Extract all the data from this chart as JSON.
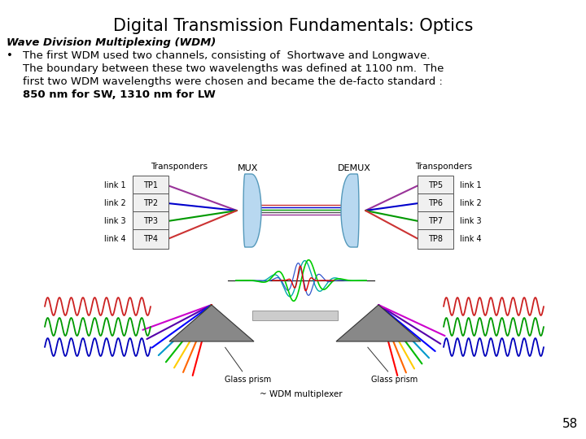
{
  "title": "Digital Transmission Fundamentals: Optics",
  "subtitle": "Wave Division Multiplexing (WDM)",
  "bullet_line1": "The first WDM used two channels, consisting of  Shortwave and Longwave.",
  "bullet_line2": "The boundary between these two wavelengths was defined at 1100 nm.  The",
  "bullet_line3": "first two WDM wavelengths were chosen and became the de-facto standard :",
  "bullet_line4": "850 nm for SW, 1310 nm for LW",
  "page_number": "58",
  "background": "#ffffff",
  "title_fontsize": 15,
  "body_fontsize": 9.5,
  "subtitle_fontsize": 9.5,
  "tp_left": [
    {
      "label": "TP1",
      "link": "link 1",
      "color": "#993399"
    },
    {
      "label": "TP2",
      "link": "link 2",
      "color": "#0000cc"
    },
    {
      "label": "TP3",
      "link": "link 3",
      "color": "#009900"
    },
    {
      "label": "TP4",
      "link": "link 4",
      "color": "#cc3333"
    }
  ],
  "tp_right": [
    {
      "label": "TP5",
      "link": "link 1",
      "color": "#993399"
    },
    {
      "label": "TP6",
      "link": "link 2",
      "color": "#0000cc"
    },
    {
      "label": "TP7",
      "link": "link 3",
      "color": "#009900"
    },
    {
      "label": "TP8",
      "link": "link 4",
      "color": "#cc3333"
    }
  ]
}
